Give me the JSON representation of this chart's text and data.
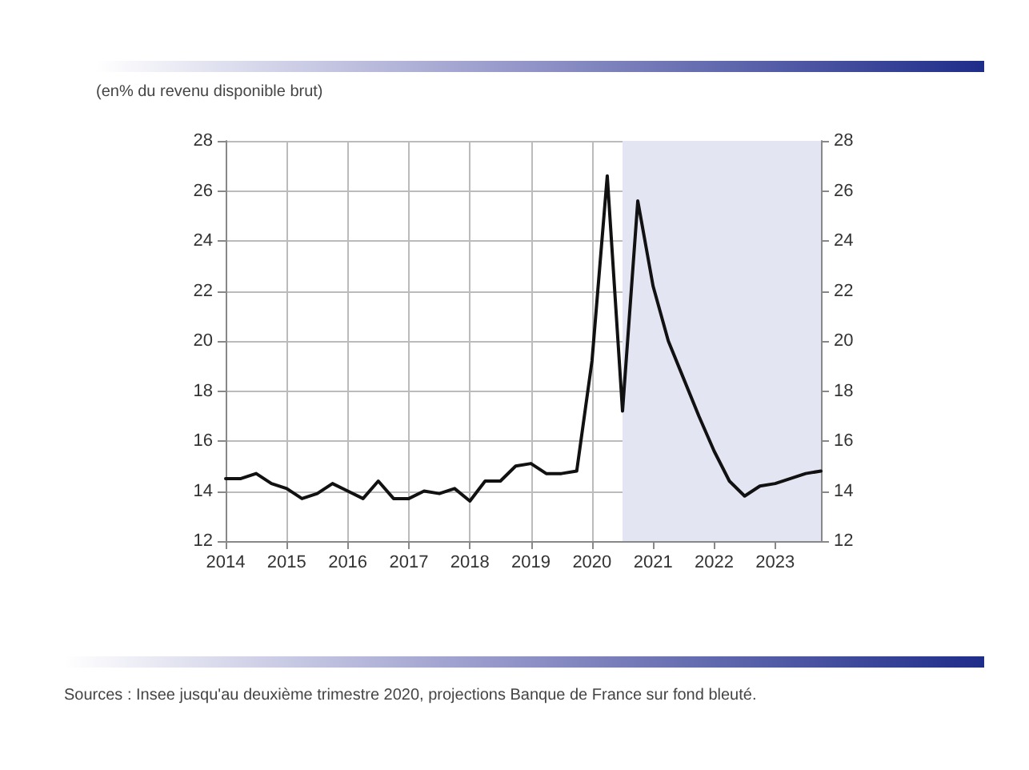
{
  "chart_data": {
    "type": "line",
    "title": "(en% du revenu disponible brut)",
    "x": [
      2014,
      2014.25,
      2014.5,
      2014.75,
      2015,
      2015.25,
      2015.5,
      2015.75,
      2016,
      2016.25,
      2016.5,
      2016.75,
      2017,
      2017.25,
      2017.5,
      2017.75,
      2018,
      2018.25,
      2018.5,
      2018.75,
      2019,
      2019.25,
      2019.5,
      2019.75,
      2020,
      2020.25,
      2020.5,
      2020.75,
      2021,
      2021.25,
      2021.5,
      2021.75,
      2022,
      2022.25,
      2022.5,
      2022.75,
      2023,
      2023.25,
      2023.5,
      2023.75
    ],
    "series": [
      {
        "color": "#111111",
        "values": [
          14.5,
          14.5,
          14.7,
          14.3,
          14.1,
          13.7,
          13.9,
          14.3,
          14.0,
          13.7,
          14.4,
          13.7,
          13.7,
          14.0,
          13.9,
          14.1,
          13.6,
          14.4,
          14.4,
          15.0,
          15.1,
          14.7,
          14.7,
          14.8,
          19.2,
          26.6,
          17.2,
          25.6,
          22.2,
          20.0,
          18.5,
          17.0,
          15.6,
          14.4,
          13.8,
          14.2,
          14.3,
          14.5,
          14.7,
          14.8
        ]
      }
    ],
    "xlim": [
      2014,
      2023.75
    ],
    "xticks": [
      2014,
      2015,
      2016,
      2017,
      2018,
      2019,
      2020,
      2021,
      2022,
      2023
    ],
    "ylim": [
      12,
      28
    ],
    "yticks": [
      12,
      14,
      16,
      18,
      20,
      22,
      24,
      26,
      28
    ],
    "y2lim": [
      12,
      28
    ],
    "y2ticks": [
      12,
      14,
      16,
      18,
      20,
      22,
      24,
      26,
      28
    ],
    "bands": [
      {
        "axis": "x",
        "from": 2020.5,
        "to": 2023.75,
        "color": "#e3e5f3"
      }
    ],
    "grid": true,
    "marker": "none",
    "line_style": "solid",
    "annotations": [
      "Sources : Insee jusqu'au deuxième trimestre 2020, projections Banque de France sur fond bleuté."
    ]
  }
}
